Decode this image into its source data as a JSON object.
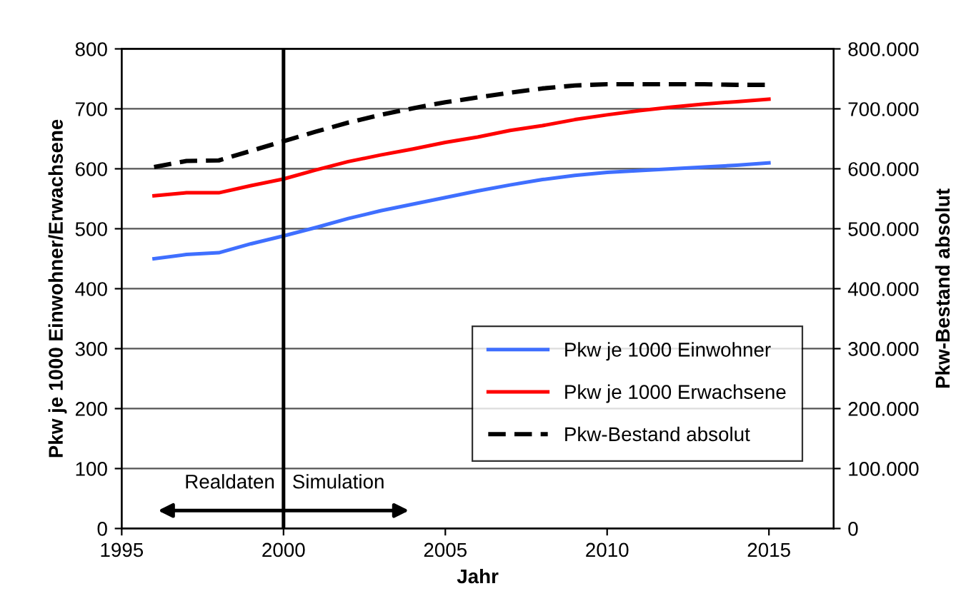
{
  "chart_data": {
    "type": "line",
    "xlabel": "Jahr",
    "ylabel": "Pkw je 1000 Einwohner/Erwachsene",
    "y2label": "Pkw-Bestand absolut",
    "x": [
      1996,
      1997,
      1998,
      1999,
      2000,
      2001,
      2002,
      2003,
      2004,
      2005,
      2006,
      2007,
      2008,
      2009,
      2010,
      2011,
      2012,
      2013,
      2014,
      2015
    ],
    "series": [
      {
        "name": "Pkw je 1000 Einwohner",
        "color": "#3f6fff",
        "line_style": "solid",
        "values": [
          450,
          457,
          460,
          475,
          488,
          502,
          517,
          530,
          541,
          552,
          563,
          573,
          582,
          589,
          594,
          597,
          600,
          603,
          606,
          610
        ]
      },
      {
        "name": "Pkw je 1000 Erwachsene",
        "color": "#ff0000",
        "line_style": "solid",
        "values": [
          555,
          560,
          560,
          572,
          583,
          598,
          612,
          623,
          633,
          644,
          653,
          664,
          672,
          682,
          690,
          697,
          703,
          708,
          712,
          716
        ]
      },
      {
        "name": "Pkw-Bestand absolut",
        "color": "#000000",
        "line_style": "dashed",
        "axis": "y2",
        "values": [
          603000,
          613000,
          614000,
          630000,
          646000,
          662000,
          677000,
          690000,
          701000,
          711000,
          719000,
          727000,
          734000,
          739000,
          741000,
          741000,
          741000,
          741000,
          740000,
          740000
        ]
      }
    ],
    "xlim": [
      1995,
      2017
    ],
    "xticks": [
      1995,
      2000,
      2005,
      2010,
      2015
    ],
    "ylim": [
      0,
      800
    ],
    "yticks": [
      0,
      100,
      200,
      300,
      400,
      500,
      600,
      700,
      800
    ],
    "y2lim": [
      0,
      800000
    ],
    "y2ticks": [
      0,
      {
        "value": 100000,
        "label": "100.000"
      },
      {
        "value": 200000,
        "label": "200.000"
      },
      {
        "value": 300000,
        "label": "300.000"
      },
      {
        "value": 400000,
        "label": "400.000"
      },
      {
        "value": 500000,
        "label": "500.000"
      },
      {
        "value": 600000,
        "label": "600.000"
      },
      {
        "value": 700000,
        "label": "700.000"
      },
      {
        "value": 800000,
        "label": "800.000"
      }
    ],
    "ref_lines": [
      {
        "axis": "x",
        "value": 2000,
        "color": "#000000"
      }
    ],
    "annotations": [
      "Realdaten",
      "Simulation"
    ],
    "grid": "y",
    "legend": "bottom right",
    "marker": "none"
  }
}
